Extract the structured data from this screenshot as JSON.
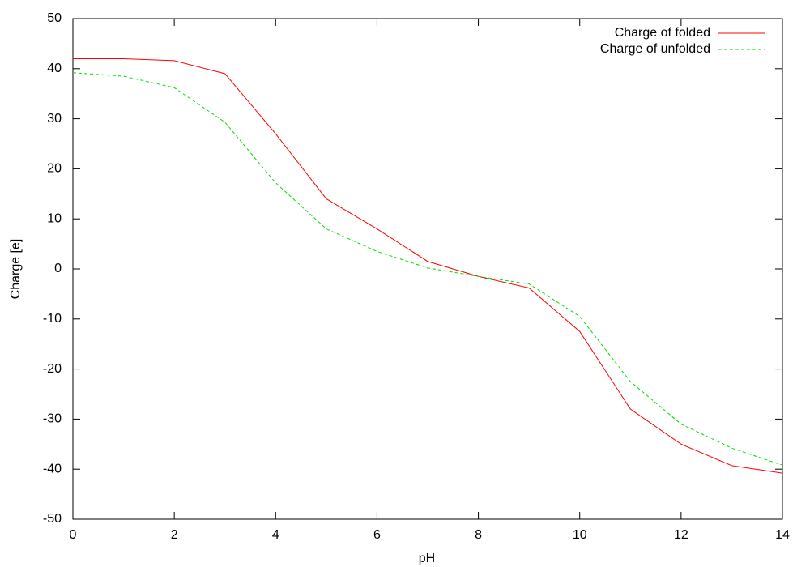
{
  "chart_data": {
    "type": "line",
    "x_label": "pH",
    "y_label": "Charge [e]",
    "x": [
      0,
      1,
      2,
      3,
      4,
      5,
      6,
      7,
      8,
      9,
      10,
      11,
      12,
      13,
      14
    ],
    "series": [
      {
        "name": "Charge of folded",
        "color": "#ff0000",
        "dash": false,
        "values": [
          42,
          42,
          41.6,
          39,
          27,
          14,
          8,
          1.5,
          -1.5,
          -3.8,
          -12.5,
          -28,
          -35,
          -39.3,
          -40.8
        ]
      },
      {
        "name": "Charge of unfolded",
        "color": "#00dd00",
        "dash": true,
        "values": [
          39.2,
          38.5,
          36.2,
          29.3,
          17.2,
          8,
          3.5,
          0.2,
          -1.5,
          -3,
          -9.5,
          -22.5,
          -31,
          -35.8,
          -39.2
        ]
      }
    ],
    "xlim": [
      0,
      14
    ],
    "xticks": [
      0,
      2,
      4,
      6,
      8,
      10,
      12,
      14
    ],
    "ylim": [
      -50,
      50
    ],
    "yticks": [
      -50,
      -40,
      -30,
      -20,
      -10,
      0,
      10,
      20,
      30,
      40,
      50
    ],
    "legend": "top-right"
  }
}
